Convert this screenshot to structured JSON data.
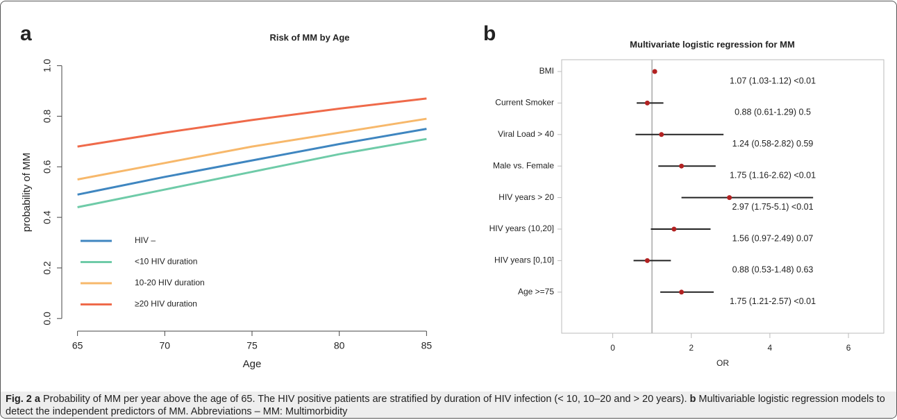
{
  "chart_data": [
    {
      "type": "line",
      "panel_label": "a",
      "title": "Risk of MM by Age",
      "x_label": "Age",
      "y_label": "probability of MM",
      "x": [
        65,
        70,
        75,
        80,
        85
      ],
      "series": [
        {
          "name": "HIV –",
          "color": "#3f86c0",
          "values": [
            0.49,
            0.56,
            0.625,
            0.69,
            0.75
          ]
        },
        {
          "name": "<10 HIV duration",
          "color": "#6fcba8",
          "values": [
            0.44,
            0.51,
            0.58,
            0.65,
            0.71
          ]
        },
        {
          "name": "10-20 HIV duration",
          "color": "#f7b86b",
          "values": [
            0.55,
            0.615,
            0.68,
            0.735,
            0.79
          ]
        },
        {
          "name": "≥20 HIV duration",
          "color": "#ef6a4a",
          "values": [
            0.68,
            0.735,
            0.785,
            0.83,
            0.87
          ]
        }
      ],
      "xlim": [
        64.1,
        85.9
      ],
      "xticks": [
        65,
        70,
        75,
        80,
        85
      ],
      "ylim": [
        -0.05,
        1.04
      ],
      "yticks": [
        {
          "value": 0,
          "label": "0.0"
        },
        0.2,
        0.4,
        0.6,
        0.8,
        {
          "value": 1,
          "label": "1.0"
        }
      ],
      "legend": "lower left"
    },
    {
      "type": "forest",
      "panel_label": "b",
      "title": "Multivariate logistic regression for MM",
      "x_label": "OR",
      "categories": [
        "BMI",
        "Current Smoker",
        "Viral Load > 40",
        "Male vs. Female",
        "HIV years > 20",
        "HIV years (10,20]",
        "HIV years [0,10]",
        "Age >=75"
      ],
      "values": [
        1.07,
        0.88,
        1.24,
        1.75,
        2.97,
        1.56,
        0.88,
        1.75
      ],
      "lower": [
        1.03,
        0.61,
        0.58,
        1.16,
        1.75,
        0.97,
        0.53,
        1.21
      ],
      "upper": [
        1.12,
        1.29,
        2.82,
        2.62,
        5.1,
        2.49,
        1.48,
        2.57
      ],
      "value_labels": [
        "1.07 (1.03-1.12) <0.01",
        "0.88 (0.61-1.29) 0.5",
        "1.24 (0.58-2.82) 0.59",
        "1.75 (1.16-2.62) <0.01",
        "2.97 (1.75-5.1) <0.01",
        "1.56 (0.97-2.49) 0.07",
        "0.88 (0.53-1.48) 0.63",
        "1.75 (1.21-2.57) <0.01"
      ],
      "color": "#b22222",
      "ref_line": 1,
      "xlim": [
        -1.3,
        6.9
      ],
      "xticks": [
        0,
        2,
        4,
        6
      ]
    }
  ],
  "caption": {
    "fig": "Fig. 2",
    "a_label": "a",
    "a_text": "Probability of MM per year above the age of 65. The HIV positive patients are stratified by duration of HIV infection (< 10, 10–20 and > 20 years).",
    "b_label": "b",
    "b_text": "Multivariable logistic regression models to detect the independent predictors of MM. Abbreviations – MM: Multimorbidity"
  }
}
